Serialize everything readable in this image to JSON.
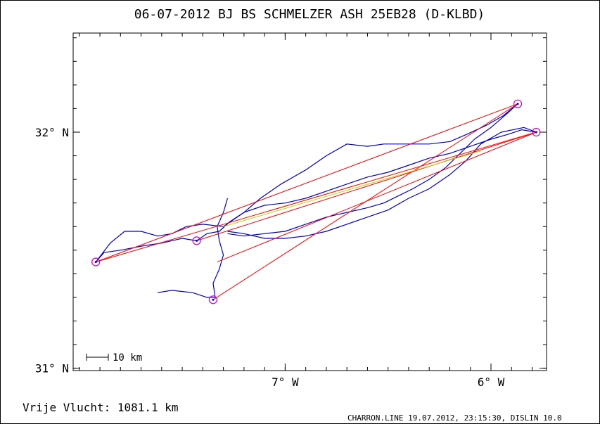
{
  "chart_data": {
    "type": "line",
    "title": "06-07-2012   BJ BS SCHMELZER   ASH 25EB28 (D-KLBD)",
    "xlabel": "",
    "ylabel": "",
    "x_ticks": [
      {
        "value": -7,
        "label": "7° W"
      },
      {
        "value": -6,
        "label": "6° W"
      }
    ],
    "y_ticks": [
      {
        "value": 32,
        "label": "32° N"
      },
      {
        "value": 31,
        "label": "31° N"
      }
    ],
    "xlim": [
      -8.03,
      -5.73
    ],
    "ylim": [
      30.99,
      32.42
    ],
    "grid": false,
    "colors": {
      "track": "#0000cc",
      "task": "#ff0000",
      "turnpoint": "#cc00cc",
      "score_leg": "#cccc00",
      "axes": "#000000"
    },
    "turnpoints": [
      {
        "lon": -7.92,
        "lat": 31.45
      },
      {
        "lon": -7.43,
        "lat": 31.54
      },
      {
        "lon": -7.35,
        "lat": 31.29
      },
      {
        "lon": -5.87,
        "lat": 32.12
      },
      {
        "lon": -5.78,
        "lat": 32.0
      }
    ],
    "task_legs": [
      [
        [
          -7.92,
          31.45
        ],
        [
          -5.87,
          32.12
        ]
      ],
      [
        [
          -7.92,
          31.45
        ],
        [
          -5.78,
          32.0
        ]
      ],
      [
        [
          -7.43,
          31.54
        ],
        [
          -5.78,
          32.0
        ]
      ],
      [
        [
          -7.35,
          31.29
        ],
        [
          -5.87,
          32.12
        ]
      ],
      [
        [
          -7.33,
          31.45
        ],
        [
          -5.78,
          32.0
        ]
      ]
    ],
    "score_leg": [
      [
        -7.3,
        31.6
      ],
      [
        -6.05,
        31.92
      ]
    ],
    "series": [
      {
        "values": [
          [
            -7.92,
            31.45
          ],
          [
            -7.88,
            31.49
          ],
          [
            -7.8,
            31.5
          ],
          [
            -7.68,
            31.52
          ],
          [
            -7.6,
            31.53
          ],
          [
            -7.5,
            31.55
          ],
          [
            -7.43,
            31.54
          ],
          [
            -7.38,
            31.57
          ],
          [
            -7.32,
            31.58
          ],
          [
            -7.27,
            31.62
          ],
          [
            -7.2,
            31.66
          ],
          [
            -7.1,
            31.69
          ],
          [
            -7.0,
            31.7
          ],
          [
            -6.9,
            31.72
          ],
          [
            -6.8,
            31.75
          ],
          [
            -6.7,
            31.78
          ],
          [
            -6.6,
            31.81
          ],
          [
            -6.5,
            31.83
          ],
          [
            -6.4,
            31.86
          ],
          [
            -6.3,
            31.89
          ],
          [
            -6.2,
            31.91
          ],
          [
            -6.1,
            31.94
          ],
          [
            -6.0,
            31.97
          ],
          [
            -5.92,
            31.99
          ],
          [
            -5.85,
            32.01
          ],
          [
            -5.78,
            32.0
          ]
        ]
      },
      {
        "values": [
          [
            -7.92,
            31.45
          ],
          [
            -7.85,
            31.53
          ],
          [
            -7.78,
            31.58
          ],
          [
            -7.7,
            31.58
          ],
          [
            -7.62,
            31.56
          ],
          [
            -7.55,
            31.57
          ],
          [
            -7.48,
            31.6
          ],
          [
            -7.4,
            31.61
          ],
          [
            -7.3,
            31.6
          ],
          [
            -7.2,
            31.66
          ],
          [
            -7.12,
            31.72
          ],
          [
            -7.02,
            31.78
          ],
          [
            -6.9,
            31.84
          ],
          [
            -6.8,
            31.9
          ],
          [
            -6.7,
            31.95
          ],
          [
            -6.6,
            31.94
          ],
          [
            -6.52,
            31.95
          ],
          [
            -6.42,
            31.95
          ],
          [
            -6.3,
            31.95
          ],
          [
            -6.2,
            31.96
          ],
          [
            -6.12,
            31.99
          ],
          [
            -6.02,
            32.03
          ],
          [
            -5.94,
            32.07
          ],
          [
            -5.87,
            32.12
          ]
        ]
      },
      {
        "values": [
          [
            -5.87,
            32.12
          ],
          [
            -5.92,
            32.08
          ],
          [
            -6.0,
            32.02
          ],
          [
            -6.08,
            31.97
          ],
          [
            -6.15,
            31.91
          ],
          [
            -6.22,
            31.85
          ],
          [
            -6.3,
            31.8
          ],
          [
            -6.38,
            31.76
          ],
          [
            -6.45,
            31.73
          ],
          [
            -6.52,
            31.7
          ],
          [
            -6.6,
            31.68
          ],
          [
            -6.7,
            31.66
          ],
          [
            -6.8,
            31.64
          ],
          [
            -6.9,
            31.61
          ],
          [
            -7.0,
            31.58
          ],
          [
            -7.1,
            31.57
          ],
          [
            -7.2,
            31.56
          ],
          [
            -7.28,
            31.57
          ]
        ]
      },
      {
        "values": [
          [
            -5.78,
            32.0
          ],
          [
            -5.84,
            32.02
          ],
          [
            -5.95,
            32.0
          ],
          [
            -6.05,
            31.95
          ],
          [
            -6.12,
            31.88
          ],
          [
            -6.2,
            31.82
          ],
          [
            -6.3,
            31.76
          ],
          [
            -6.4,
            31.72
          ],
          [
            -6.5,
            31.67
          ],
          [
            -6.6,
            31.64
          ],
          [
            -6.7,
            31.61
          ],
          [
            -6.8,
            31.58
          ],
          [
            -6.9,
            31.56
          ],
          [
            -7.0,
            31.55
          ],
          [
            -7.1,
            31.55
          ],
          [
            -7.2,
            31.57
          ],
          [
            -7.28,
            31.58
          ]
        ]
      },
      {
        "values": [
          [
            -7.28,
            31.72
          ],
          [
            -7.3,
            31.66
          ],
          [
            -7.33,
            31.6
          ],
          [
            -7.32,
            31.54
          ],
          [
            -7.3,
            31.48
          ],
          [
            -7.32,
            31.42
          ],
          [
            -7.35,
            31.36
          ],
          [
            -7.34,
            31.3
          ],
          [
            -7.38,
            31.3
          ],
          [
            -7.45,
            31.32
          ],
          [
            -7.55,
            31.33
          ],
          [
            -7.62,
            31.32
          ]
        ]
      }
    ]
  },
  "labels": {
    "scale_bar": "10 km",
    "distance": "Vrije Vlucht: 1081.1 km",
    "credit": "CHARRON.LINE 19.07.2012, 23:15:30, DISLIN 10.0"
  }
}
